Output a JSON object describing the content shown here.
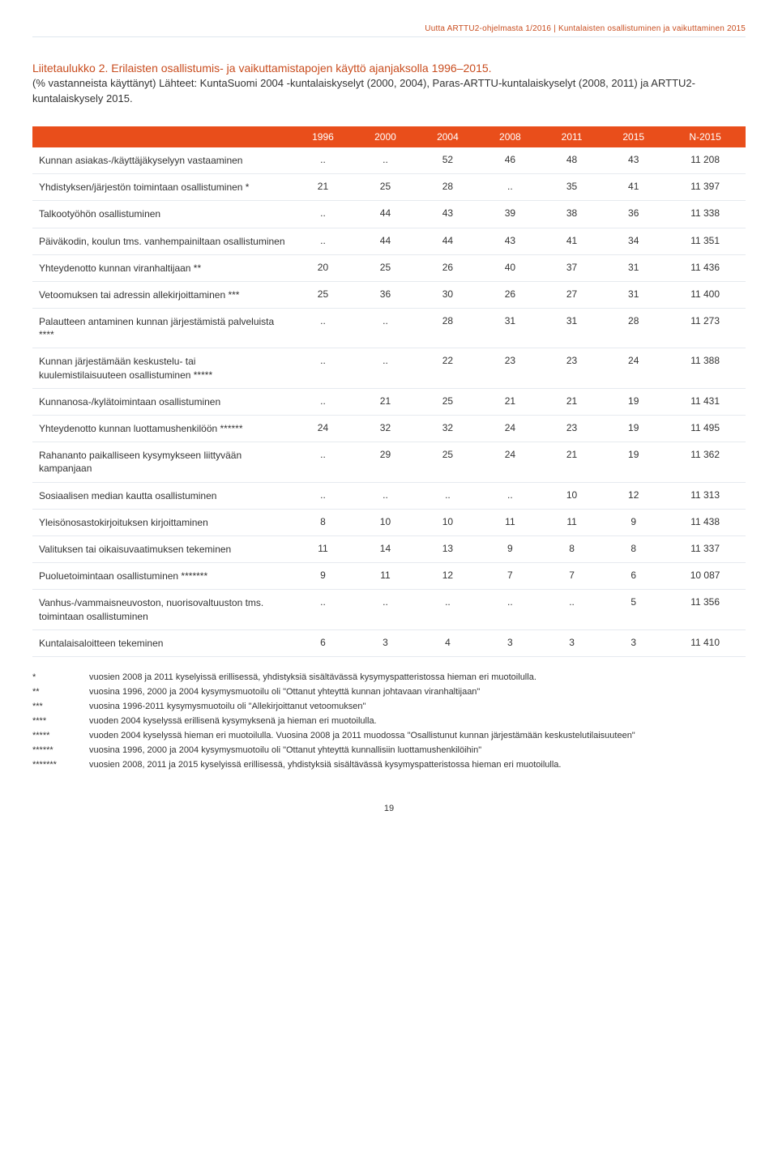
{
  "header": {
    "breadcrumb": "Uutta ARTTU2-ohjelmasta 1/2016 | Kuntalaisten osallistuminen ja vaikuttaminen 2015",
    "breadcrumb_color": "#c94d1f"
  },
  "title": {
    "title_text": "Liitetaulukko 2. Erilaisten osallistumis- ja vaikuttamistapojen käyttö ajanjaksolla 1996–2015.",
    "subtitle_text": "(% vastanneista käyttänyt) Lähteet: KuntaSuomi 2004 -kuntalaiskyselyt (2000, 2004), Paras-ARTTU-kuntalaiskyselyt (2008, 2011) ja ARTTU2-kuntalaiskysely 2015.",
    "title_color": "#c94d1f",
    "subtitle_color": "#333333"
  },
  "table": {
    "type": "table",
    "header_bg": "#e94e1b",
    "header_fg": "#ffffff",
    "row_border_color": "#e6eaef",
    "columns": [
      "1996",
      "2000",
      "2004",
      "2008",
      "2011",
      "2015",
      "N-2015"
    ],
    "rows": [
      {
        "label": "Kunnan asiakas-/käyttäjäkyselyyn vastaaminen",
        "cells": [
          "..",
          "..",
          "52",
          "46",
          "48",
          "43",
          "11 208"
        ]
      },
      {
        "label": "Yhdistyksen/järjestön toimintaan osallistuminen *",
        "cells": [
          "21",
          "25",
          "28",
          "..",
          "35",
          "41",
          "11 397"
        ]
      },
      {
        "label": "Talkootyöhön osallistuminen",
        "cells": [
          "..",
          "44",
          "43",
          "39",
          "38",
          "36",
          "11 338"
        ]
      },
      {
        "label": "Päiväkodin, koulun tms. vanhempainiltaan osallistuminen",
        "cells": [
          "..",
          "44",
          "44",
          "43",
          "41",
          "34",
          "11 351"
        ]
      },
      {
        "label": "Yhteydenotto kunnan viranhaltijaan **",
        "cells": [
          "20",
          "25",
          "26",
          "40",
          "37",
          "31",
          "11 436"
        ]
      },
      {
        "label": "Vetoomuksen tai adressin allekirjoittaminen ***",
        "cells": [
          "25",
          "36",
          "30",
          "26",
          "27",
          "31",
          "11 400"
        ]
      },
      {
        "label": "Palautteen antaminen kunnan järjestämistä palveluista ****",
        "cells": [
          "..",
          "..",
          "28",
          "31",
          "31",
          "28",
          "11 273"
        ]
      },
      {
        "label": "Kunnan järjestämään keskustelu- tai kuulemistilaisuuteen osallistuminen *****",
        "cells": [
          "..",
          "..",
          "22",
          "23",
          "23",
          "24",
          "11 388"
        ]
      },
      {
        "label": "Kunnanosa-/kylätoimintaan osallistuminen",
        "cells": [
          "..",
          "21",
          "25",
          "21",
          "21",
          "19",
          "11 431"
        ]
      },
      {
        "label": "Yhteydenotto kunnan luottamushenkilöön ******",
        "cells": [
          "24",
          "32",
          "32",
          "24",
          "23",
          "19",
          "11 495"
        ]
      },
      {
        "label": "Rahananto paikalliseen kysymykseen liittyvään kampanjaan",
        "cells": [
          "..",
          "29",
          "25",
          "24",
          "21",
          "19",
          "11 362"
        ]
      },
      {
        "label": "Sosiaalisen median kautta osallistuminen",
        "cells": [
          "..",
          "..",
          "..",
          "..",
          "10",
          "12",
          "11 313"
        ]
      },
      {
        "label": "Yleisönosastokirjoituksen kirjoittaminen",
        "cells": [
          "8",
          "10",
          "10",
          "11",
          "11",
          "9",
          "11 438"
        ]
      },
      {
        "label": "Valituksen tai oikaisuvaatimuksen tekeminen",
        "cells": [
          "11",
          "14",
          "13",
          "9",
          "8",
          "8",
          "11 337"
        ]
      },
      {
        "label": "Puoluetoimintaan osallistuminen *******",
        "cells": [
          "9",
          "11",
          "12",
          "7",
          "7",
          "6",
          "10 087"
        ]
      },
      {
        "label": "Vanhus-/vammaisneuvoston, nuorisovaltuuston tms. toimintaan osallistuminen",
        "cells": [
          "..",
          "..",
          "..",
          "..",
          "..",
          "5",
          "11 356"
        ]
      },
      {
        "label": "Kuntalaisaloitteen tekeminen",
        "cells": [
          "6",
          "3",
          "4",
          "3",
          "3",
          "3",
          "11 410"
        ]
      }
    ]
  },
  "footnotes": [
    {
      "key": "*",
      "text": "vuosien 2008 ja 2011 kyselyissä erillisessä, yhdistyksiä sisältävässä kysymyspatteristossa hieman eri muotoilulla."
    },
    {
      "key": "**",
      "text": "vuosina 1996, 2000 ja 2004 kysymysmuotoilu oli \"Ottanut yhteyttä kunnan johtavaan viranhaltijaan\""
    },
    {
      "key": "***",
      "text": "vuosina 1996-2011 kysymysmuotoilu oli \"Allekirjoittanut vetoomuksen\""
    },
    {
      "key": "****",
      "text": "vuoden 2004 kyselyssä erillisenä kysymyksenä ja hieman eri muotoilulla."
    },
    {
      "key": "*****",
      "text": "vuoden 2004 kyselyssä hieman eri muotoilulla. Vuosina 2008 ja 2011 muodossa \"Osallistunut kunnan järjestämään keskustelutilaisuuteen\""
    },
    {
      "key": "******",
      "text": "vuosina 1996, 2000 ja 2004 kysymysmuotoilu oli \"Ottanut yhteyttä kunnallisiin luottamushenkilöihin\""
    },
    {
      "key": "*******",
      "text": "vuosien 2008, 2011 ja 2015 kyselyissä erillisessä, yhdistyksiä sisältävässä kysymyspatteristossa hieman eri muotoilulla."
    }
  ],
  "page_number": "19"
}
